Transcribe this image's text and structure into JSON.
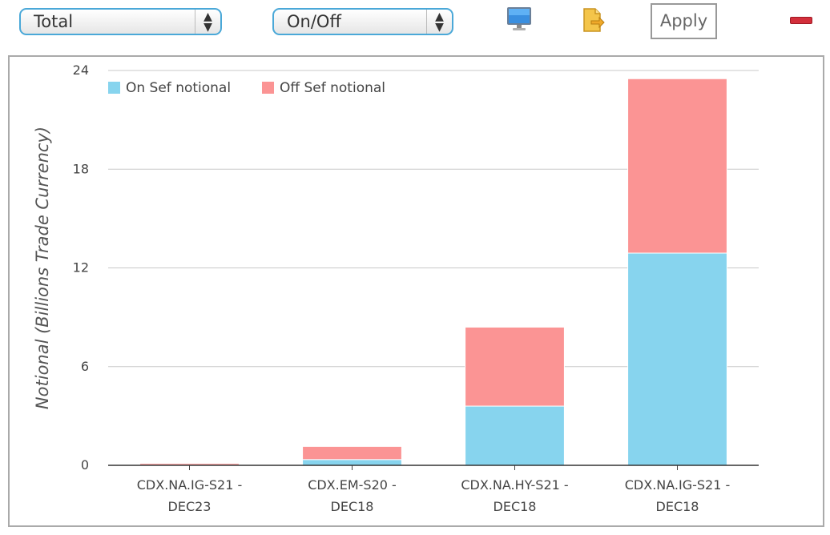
{
  "toolbar": {
    "measure_select": {
      "value": "Total"
    },
    "split_select": {
      "value": "On/Off"
    },
    "apply_label": "Apply",
    "icons": {
      "monitor": "monitor-icon",
      "export": "export-icon",
      "remove": "minus-icon"
    }
  },
  "chart_data": {
    "type": "bar",
    "stacked": true,
    "categories": [
      [
        "CDX.NA.IG-S21 -",
        "DEC23"
      ],
      [
        "CDX.EM-S20 -",
        "DEC18"
      ],
      [
        "CDX.NA.HY-S21 -",
        "DEC18"
      ],
      [
        "CDX.NA.IG-S21 -",
        "DEC18"
      ]
    ],
    "series": [
      {
        "name": "On Sef notional",
        "color": "#87d4ee",
        "values": [
          0.02,
          0.35,
          3.6,
          12.9
        ]
      },
      {
        "name": "Off Sef notional",
        "color": "#fb9494",
        "values": [
          0.1,
          0.8,
          4.8,
          10.6
        ]
      }
    ],
    "ylabel": "Notional (Billions Trade Currency)",
    "xlabel": "",
    "ylim": [
      0,
      24
    ],
    "yticks": [
      0,
      6,
      12,
      18,
      24
    ],
    "grid": true,
    "legend": "top-left"
  }
}
